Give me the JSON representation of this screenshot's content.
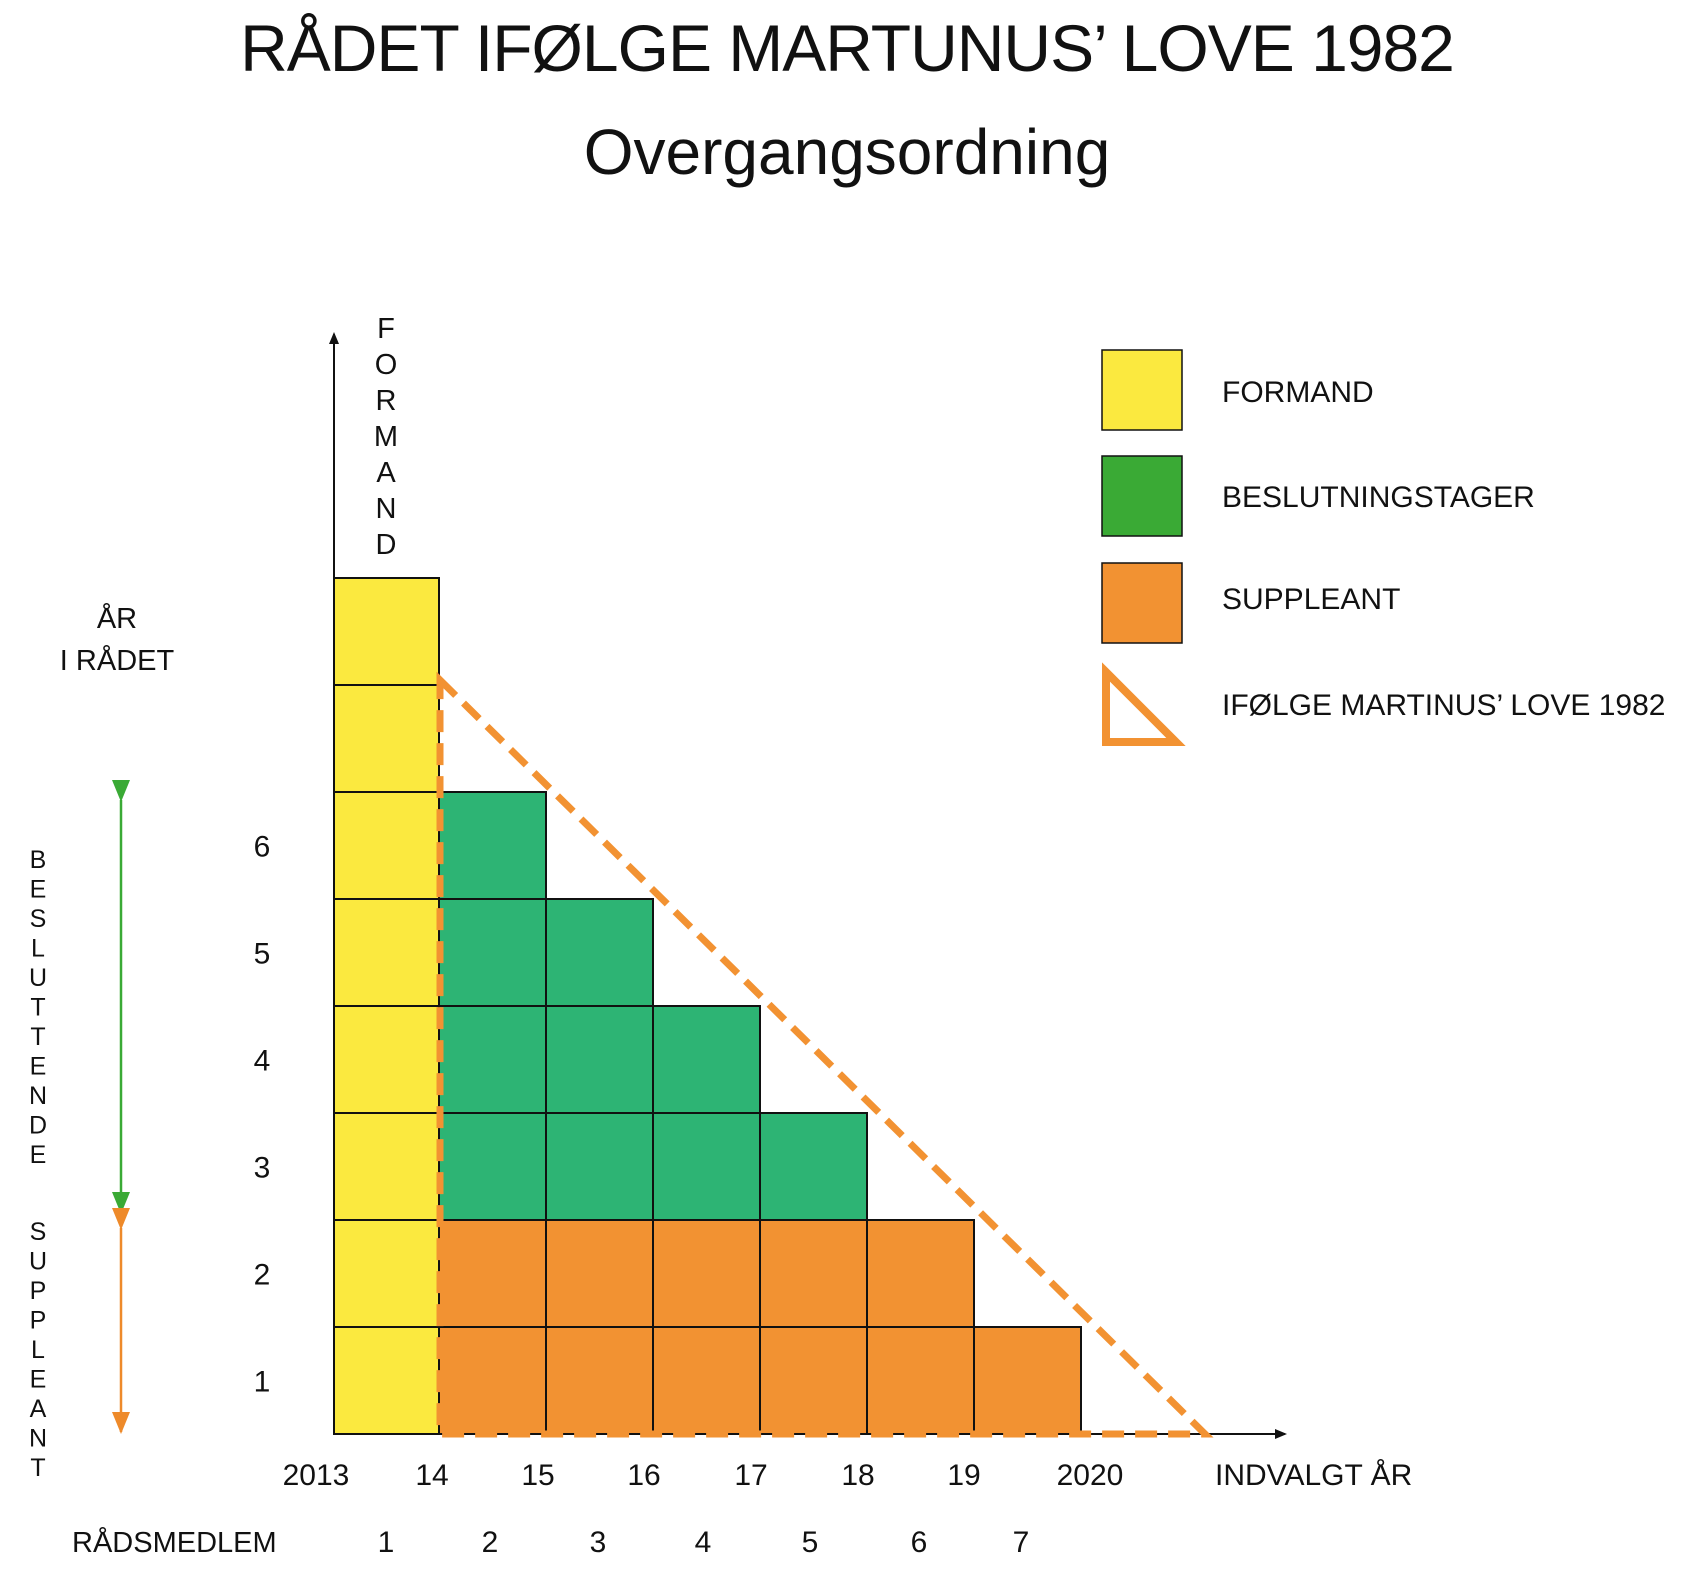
{
  "title": "RÅDET IFØLGE MARTUNUS’ LOVE 1982",
  "subtitle": "Overgangsordning",
  "colors": {
    "formand": "#fbe93f",
    "beslutningstager": "#2db474",
    "suppleant": "#f29232",
    "triangle": "#f29232",
    "arrow_green": "#3aaa35",
    "arrow_orange": "#ee8a2a",
    "grid": "#111111"
  },
  "legend": {
    "formand": "FORMAND",
    "beslutningstager": "BESLUTNINGSTAGER",
    "suppleant": "SUPPLEANT",
    "triangle": "IFØLGE MARTINUS’ LOVE 1982"
  },
  "axes": {
    "y_top_label": "FORMAND",
    "y_side_label_line1": "ÅR",
    "y_side_label_line2": "I RÅDET",
    "y_ticks": [
      "1",
      "2",
      "3",
      "4",
      "5",
      "6"
    ],
    "x_label": "INDVALGT ÅR",
    "x_ticks": [
      "2013",
      "14",
      "15",
      "16",
      "17",
      "18",
      "19",
      "2020"
    ],
    "member_row_label": "RÅDSMEDLEM",
    "member_ticks": [
      "1",
      "2",
      "3",
      "4",
      "5",
      "6",
      "7"
    ],
    "left_label_beslutning": "BESLUTTENDE",
    "left_label_suppleant": "SUPPLEANT"
  },
  "chart_data": {
    "type": "table",
    "description_rows": "year in council (1 = bottom)",
    "formand_column": {
      "start_year": "2013",
      "height_years": 8
    },
    "members": [
      {
        "member": "1",
        "elected": "14",
        "suppleant_years": 2,
        "beslutning_years": 4
      },
      {
        "member": "2",
        "elected": "15",
        "suppleant_years": 2,
        "beslutning_years": 3
      },
      {
        "member": "3",
        "elected": "16",
        "suppleant_years": 2,
        "beslutning_years": 2
      },
      {
        "member": "4",
        "elected": "17",
        "suppleant_years": 2,
        "beslutning_years": 1
      },
      {
        "member": "5",
        "elected": "18",
        "suppleant_years": 2,
        "beslutning_years": 0
      },
      {
        "member": "6",
        "elected": "19",
        "suppleant_years": 1,
        "beslutning_years": 0
      }
    ]
  }
}
